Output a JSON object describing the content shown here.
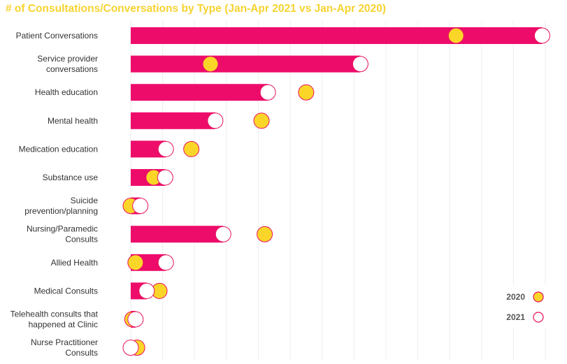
{
  "chart_data": {
    "type": "bar",
    "title": "# of Consultations/Conversations by Type (Jan-Apr 2021 vs Jan-Apr 2020)",
    "categories": [
      "Patient Conversations",
      "Service provider conversations",
      "Health education",
      "Mental health",
      "Medication education",
      "Substance use",
      "Suicide prevention/planning",
      "Nursing/Paramedic Consults",
      "Allied Health",
      "Medical Consults",
      "Telehealth consults that happened at Clinic",
      "Nurse Practitioner Consults"
    ],
    "category_lines": [
      [
        "Patient Conversations"
      ],
      [
        "Service provider",
        "conversations"
      ],
      [
        "Health education"
      ],
      [
        "Mental health"
      ],
      [
        "Medication education"
      ],
      [
        "Substance use"
      ],
      [
        "Suicide",
        "prevention/planning"
      ],
      [
        "Nursing/Paramedic",
        "Consults"
      ],
      [
        "Allied Health"
      ],
      [
        "Medical Consults"
      ],
      [
        "Telehealth consults that",
        "happened at Clinic"
      ],
      [
        "Nurse Practitioner",
        "Consults"
      ]
    ],
    "series": [
      {
        "name": "2021",
        "mark": "bar + white circle",
        "values": [
          1290,
          720,
          430,
          265,
          110,
          108,
          30,
          290,
          110,
          50,
          15,
          0
        ]
      },
      {
        "name": "2020",
        "mark": "yellow circle",
        "values": [
          1020,
          250,
          550,
          410,
          190,
          72,
          0,
          420,
          15,
          90,
          5,
          20
        ]
      }
    ],
    "xlim": [
      0,
      1300
    ],
    "grid": true,
    "legend_position": "bottom-right",
    "colors": {
      "bar": "#ee0c6b",
      "marker_2020": "#fbd629",
      "marker_2021": "#ffffff",
      "marker_stroke": "#e8105e",
      "title": "#f7d331",
      "grid": "#eeeeee"
    }
  },
  "legend": [
    {
      "label": "2020",
      "series": "2020"
    },
    {
      "label": "2021",
      "series": "2021"
    }
  ]
}
